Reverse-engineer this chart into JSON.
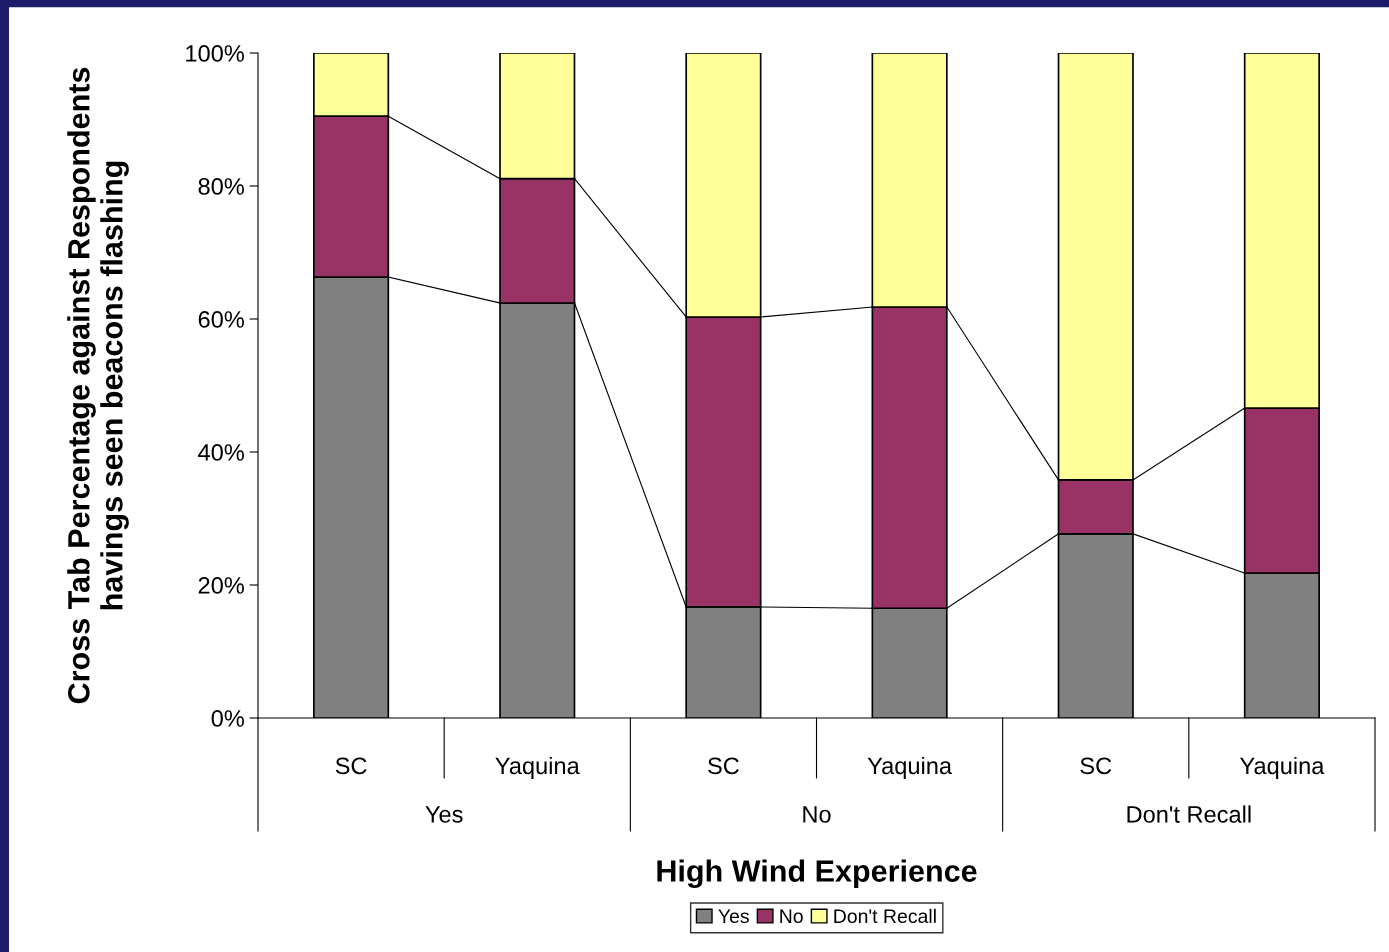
{
  "chart_data": {
    "type": "bar",
    "stacked": true,
    "xlabel": "High Wind Experience",
    "ylabel": "Cross Tab Percentage against Respondents\nhavings seen beacons flashing",
    "categories": [
      "SC",
      "Yaquina",
      "SC",
      "Yaquina",
      "SC",
      "Yaquina"
    ],
    "annotations": [
      "Yes",
      "No",
      "Don't Recall"
    ],
    "series": [
      {
        "name": "Yes",
        "color": "#808080",
        "values": [
          66.3,
          62.4,
          16.7,
          16.5,
          27.7,
          21.8
        ]
      },
      {
        "name": "No",
        "color": "#993366",
        "values": [
          24.2,
          18.7,
          43.6,
          45.3,
          8.1,
          24.8
        ]
      },
      {
        "name": "Don't Recall",
        "color": "#ffff99",
        "values": [
          9.5,
          18.9,
          39.7,
          38.2,
          64.2,
          53.4
        ]
      }
    ],
    "ylim": [
      0,
      100
    ],
    "yticks": [
      {
        "value": 0,
        "label": "0%"
      },
      {
        "value": 20,
        "label": "20%"
      },
      {
        "value": 40,
        "label": "40%"
      },
      {
        "value": 60,
        "label": "60%"
      },
      {
        "value": 80,
        "label": "80%"
      },
      {
        "value": 100,
        "label": "100%"
      }
    ],
    "grid": false,
    "legend": "bottom"
  }
}
